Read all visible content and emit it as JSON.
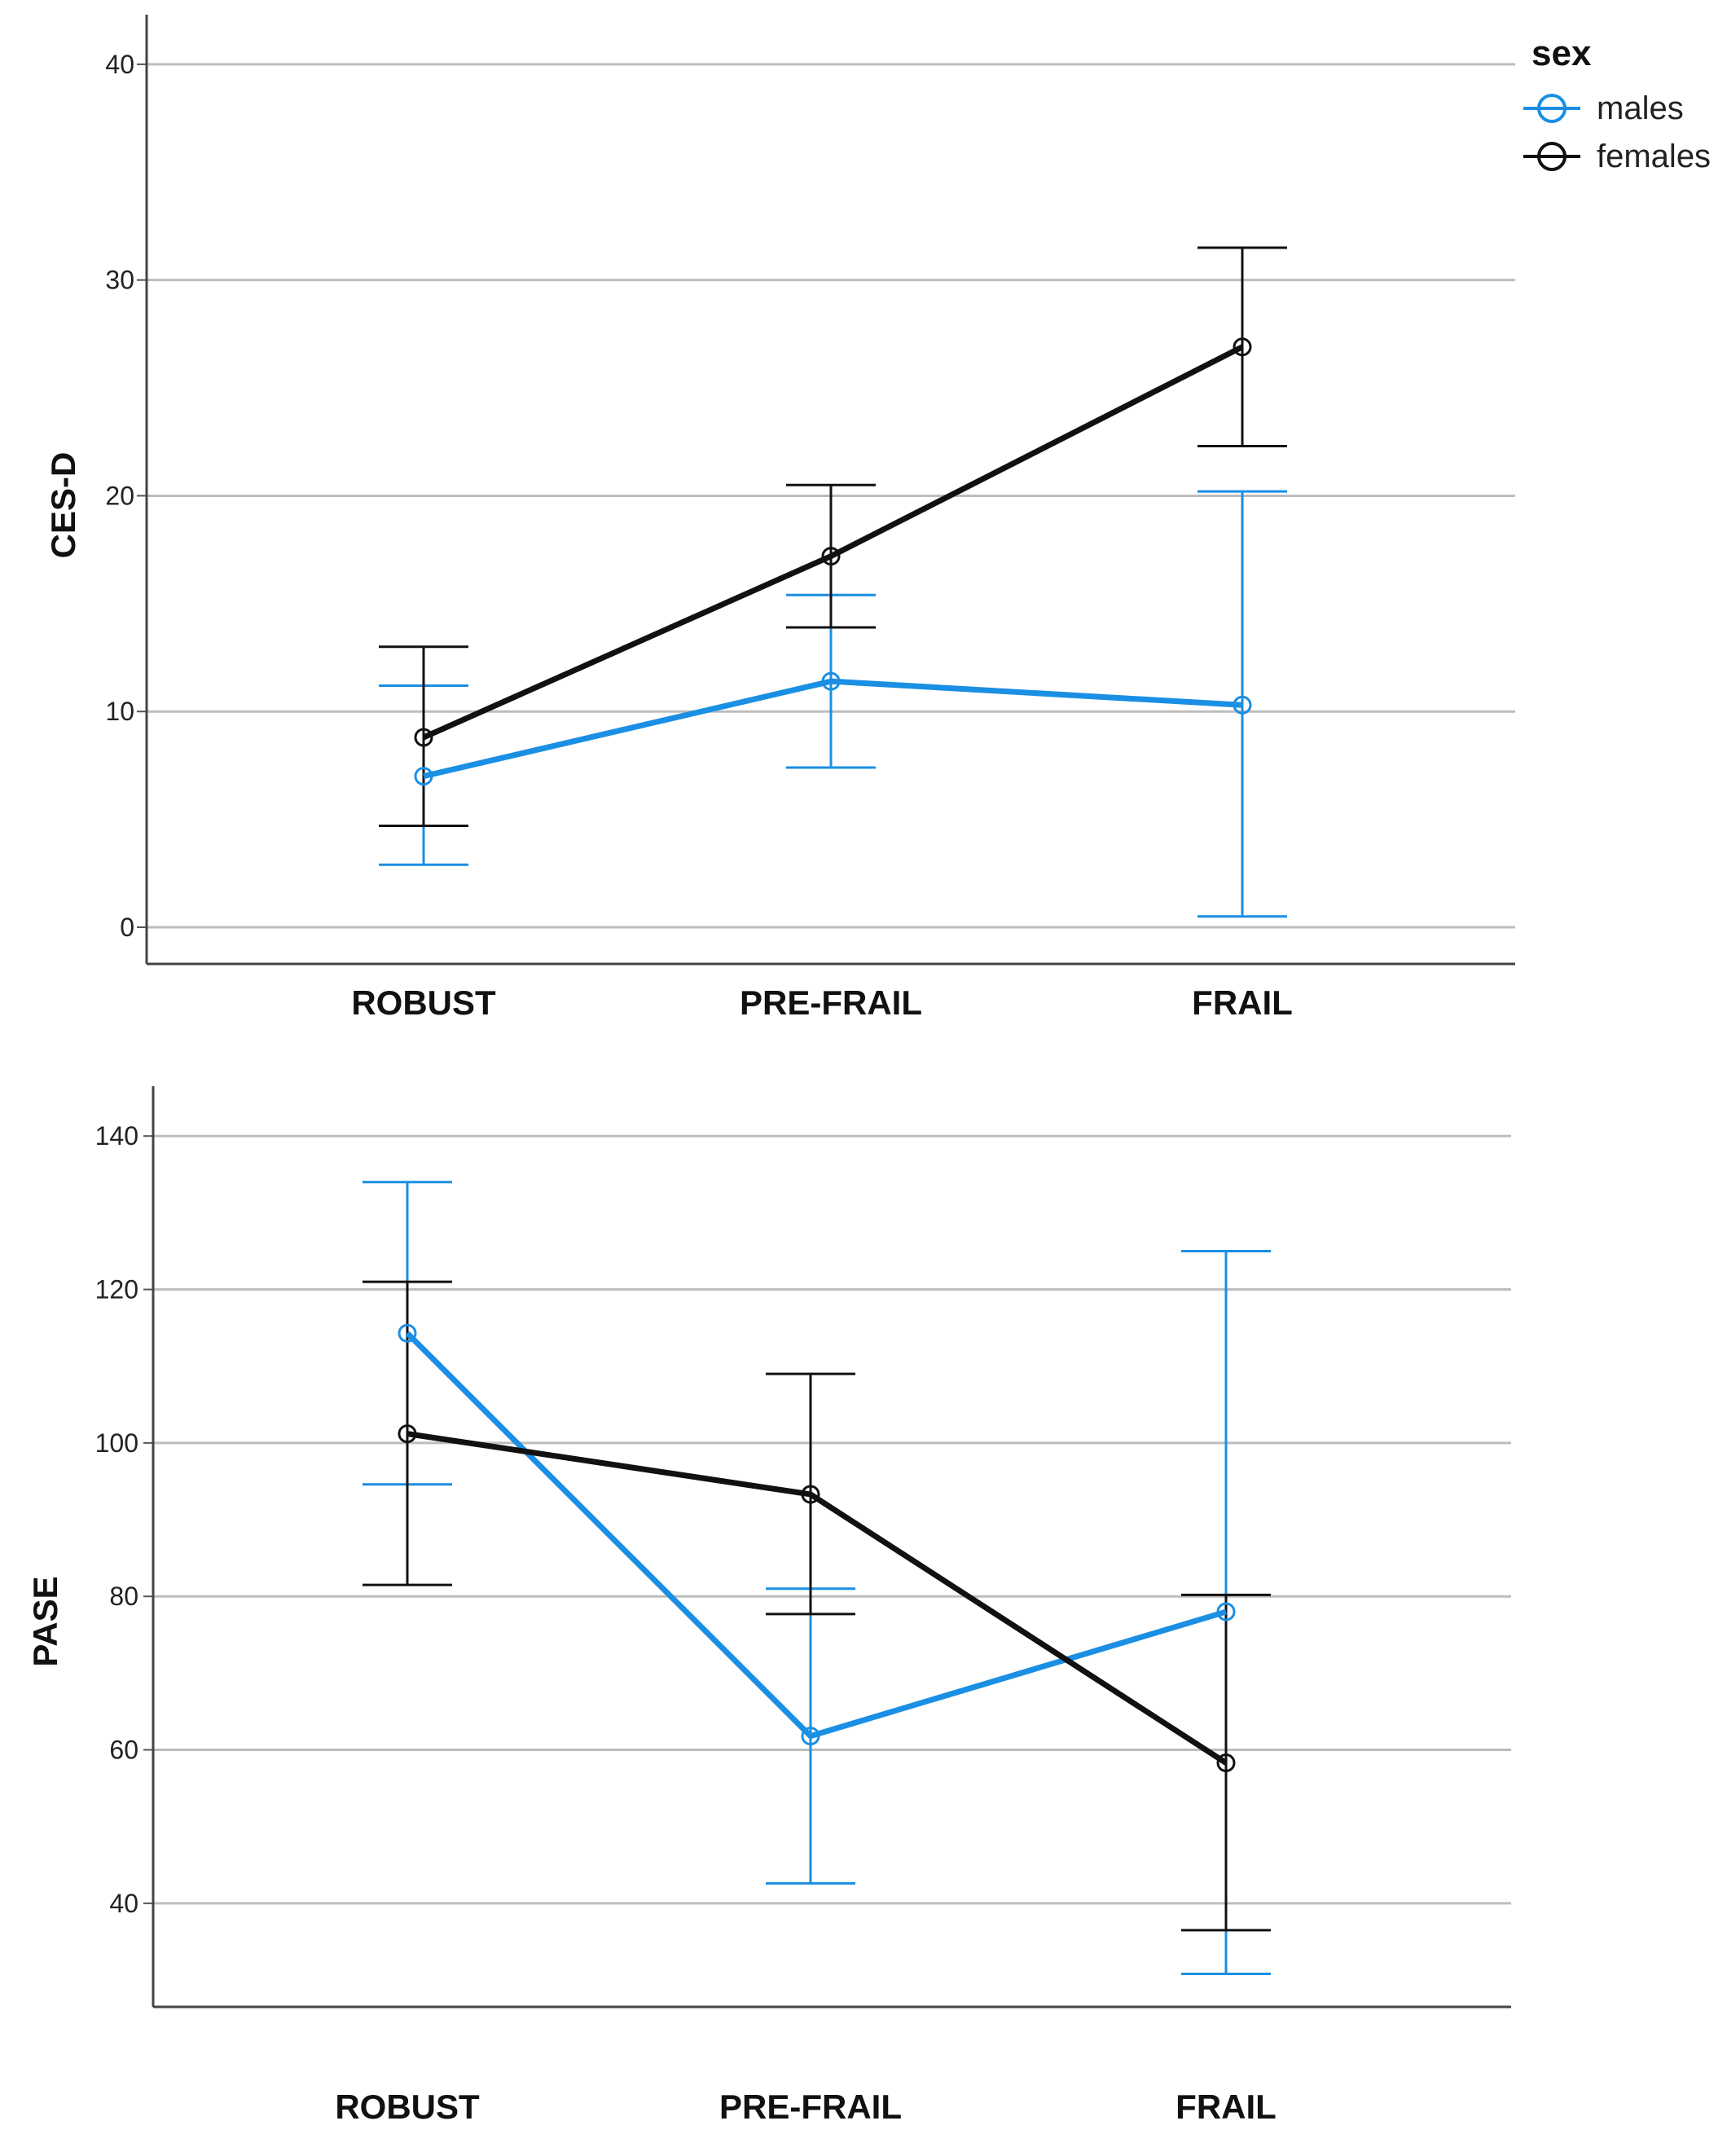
{
  "legend": {
    "title": "sex",
    "entries": [
      {
        "name": "males",
        "color": "#1a8fe3"
      },
      {
        "name": "females",
        "color": "#111111"
      }
    ]
  },
  "chart_data": [
    {
      "type": "line",
      "ylabel": "CES-D",
      "xlabel": "",
      "categories": [
        "ROBUST",
        "PRE-FRAIL",
        "FRAIL"
      ],
      "ylim": [
        -1.7,
        42.3
      ],
      "yticks": [
        0,
        10,
        20,
        30,
        40
      ],
      "grid": true,
      "legend": "top-right",
      "series": [
        {
          "name": "males",
          "color": "#1a8fe3",
          "values": [
            7.0,
            11.4,
            10.3
          ],
          "lower": [
            2.9,
            7.4,
            0.5
          ],
          "upper": [
            11.2,
            15.4,
            20.2
          ]
        },
        {
          "name": "females",
          "color": "#111111",
          "values": [
            8.8,
            17.2,
            26.9
          ],
          "lower": [
            4.7,
            13.9,
            22.3
          ],
          "upper": [
            13.0,
            20.5,
            31.5
          ]
        }
      ]
    },
    {
      "type": "line",
      "ylabel": "PASE",
      "xlabel": "",
      "categories": [
        "ROBUST",
        "PRE-FRAIL",
        "FRAIL"
      ],
      "ylim": [
        26.5,
        146.5
      ],
      "yticks": [
        40,
        60,
        80,
        100,
        120,
        140
      ],
      "grid": true,
      "series": [
        {
          "name": "males",
          "color": "#1a8fe3",
          "values": [
            114.3,
            61.8,
            78.0
          ],
          "lower": [
            94.6,
            42.6,
            30.8
          ],
          "upper": [
            134.0,
            81.0,
            125.0
          ]
        },
        {
          "name": "females",
          "color": "#111111",
          "values": [
            101.2,
            93.3,
            58.3
          ],
          "lower": [
            81.5,
            77.7,
            36.5
          ],
          "upper": [
            121.0,
            109.0,
            80.2
          ]
        }
      ]
    }
  ]
}
